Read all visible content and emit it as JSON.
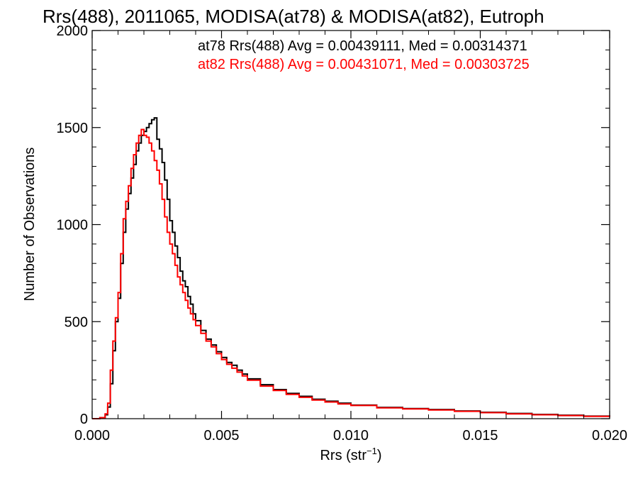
{
  "chart_data": {
    "type": "line",
    "title": "Rrs(488), 2011065, MODISA(at78) & MODISA(at82), Eutroph",
    "xlabel": "Rrs (str",
    "xlabel_sup": "−1",
    "xlabel_close": ")",
    "ylabel": "Number of Observations",
    "xlim": [
      0.0,
      0.02
    ],
    "ylim": [
      0,
      2000
    ],
    "x_ticks": [
      0.0,
      0.005,
      0.01,
      0.015,
      0.02
    ],
    "x_tick_labels": [
      "0.000",
      "0.005",
      "0.010",
      "0.015",
      "0.020"
    ],
    "y_ticks": [
      0,
      500,
      1000,
      1500,
      2000
    ],
    "y_tick_labels": [
      "0",
      "500",
      "1000",
      "1500",
      "2000"
    ],
    "grid": false,
    "step_histogram": true,
    "annotations": [
      {
        "text": "at78 Rrs(488) Avg = 0.00439111, Med = 0.00314371",
        "color": "#000000"
      },
      {
        "text": "at82 Rrs(488) Avg = 0.00431071, Med = 0.00303725",
        "color": "#ff0000"
      }
    ],
    "series": [
      {
        "color": "#000000",
        "x": [
          0.0,
          0.0003,
          0.0005,
          0.0006,
          0.0007,
          0.0008,
          0.0009,
          0.001,
          0.0011,
          0.0012,
          0.0013,
          0.0014,
          0.0015,
          0.0016,
          0.0017,
          0.0018,
          0.0019,
          0.002,
          0.0021,
          0.0022,
          0.0023,
          0.0024,
          0.0025,
          0.0026,
          0.0027,
          0.0028,
          0.0029,
          0.003,
          0.0031,
          0.0032,
          0.0033,
          0.0034,
          0.0035,
          0.0036,
          0.0037,
          0.0038,
          0.0039,
          0.004,
          0.0042,
          0.0044,
          0.0046,
          0.0048,
          0.005,
          0.0052,
          0.0054,
          0.0056,
          0.0058,
          0.006,
          0.0065,
          0.007,
          0.0075,
          0.008,
          0.0085,
          0.009,
          0.0095,
          0.01,
          0.011,
          0.012,
          0.013,
          0.014,
          0.015,
          0.016,
          0.017,
          0.018,
          0.019,
          0.02
        ],
        "y": [
          0,
          5,
          20,
          60,
          180,
          350,
          500,
          620,
          800,
          960,
          1080,
          1160,
          1240,
          1310,
          1380,
          1420,
          1460,
          1480,
          1500,
          1520,
          1540,
          1550,
          1440,
          1390,
          1320,
          1230,
          1130,
          1020,
          960,
          890,
          830,
          760,
          710,
          680,
          630,
          590,
          540,
          505,
          455,
          410,
          380,
          345,
          315,
          290,
          275,
          250,
          230,
          205,
          175,
          150,
          130,
          115,
          100,
          90,
          80,
          70,
          58,
          52,
          47,
          40,
          33,
          27,
          22,
          18,
          13,
          10
        ]
      },
      {
        "color": "#ff0000",
        "x": [
          0.0,
          0.0003,
          0.0005,
          0.0006,
          0.0007,
          0.0008,
          0.0009,
          0.001,
          0.0011,
          0.0012,
          0.0013,
          0.0014,
          0.0015,
          0.0016,
          0.0017,
          0.0018,
          0.0019,
          0.002,
          0.0021,
          0.0022,
          0.0023,
          0.0024,
          0.0025,
          0.0026,
          0.0027,
          0.0028,
          0.0029,
          0.003,
          0.0031,
          0.0032,
          0.0033,
          0.0034,
          0.0035,
          0.0036,
          0.0037,
          0.0038,
          0.0039,
          0.004,
          0.0042,
          0.0044,
          0.0046,
          0.0048,
          0.005,
          0.0052,
          0.0054,
          0.0056,
          0.0058,
          0.006,
          0.0065,
          0.007,
          0.0075,
          0.008,
          0.0085,
          0.009,
          0.0095,
          0.01,
          0.011,
          0.012,
          0.013,
          0.014,
          0.015,
          0.016,
          0.017,
          0.018,
          0.019,
          0.02
        ],
        "y": [
          0,
          5,
          25,
          80,
          250,
          400,
          520,
          650,
          850,
          1030,
          1120,
          1200,
          1290,
          1360,
          1420,
          1460,
          1490,
          1460,
          1450,
          1420,
          1380,
          1330,
          1280,
          1210,
          1130,
          1040,
          960,
          900,
          850,
          790,
          730,
          690,
          650,
          610,
          570,
          540,
          510,
          480,
          440,
          400,
          370,
          335,
          305,
          280,
          260,
          240,
          220,
          198,
          168,
          145,
          125,
          110,
          96,
          86,
          76,
          68,
          56,
          50,
          45,
          38,
          31,
          25,
          20,
          16,
          12,
          9
        ]
      }
    ]
  }
}
